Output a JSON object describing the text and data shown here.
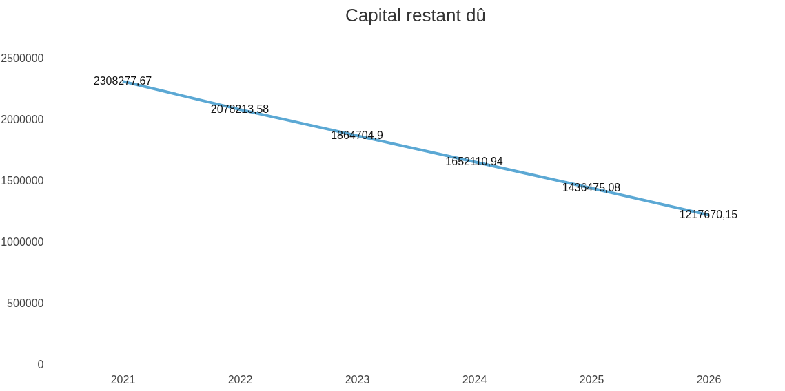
{
  "chart_data": {
    "type": "line",
    "title": "Capital restant dû",
    "categories": [
      "2021",
      "2022",
      "2023",
      "2024",
      "2025",
      "2026"
    ],
    "series": [
      {
        "color": "#5ba8d4",
        "values": [
          2308277.67,
          2078213.58,
          1864704.9,
          1652110.94,
          1436475.08,
          1217670.15
        ],
        "value_labels": [
          "2308277,67",
          "2078213,58",
          "1864704,9",
          "1652110,94",
          "1436475,08",
          "1217670,15"
        ]
      }
    ],
    "ylim": [
      0,
      2500000
    ],
    "yticks": [
      0,
      500000,
      1000000,
      1500000,
      2000000,
      2500000
    ],
    "grid": false,
    "legend": false,
    "marker": "none",
    "line_style": "solid"
  }
}
